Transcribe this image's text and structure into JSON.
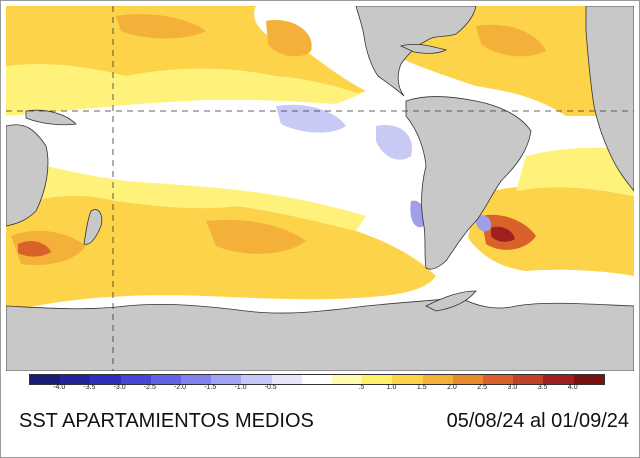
{
  "map": {
    "colors": {
      "ocean_neutral": "#ffffff",
      "land": "#c8c8c8",
      "coast": "#333333",
      "warm_light": "#fff27a",
      "warm_mid": "#fdd34a",
      "warm_strong": "#f4b13a",
      "warm_hot": "#d9622a",
      "warm_extreme": "#a01f1f",
      "cool_light": "#c9c9f5",
      "cool_mid": "#9f9fea",
      "graticule": "#333333"
    }
  },
  "legend": {
    "ticks": [
      "-4.0",
      "-3.5",
      "-3.0",
      "-2.5",
      "-2.0",
      "-1.5",
      "-1.0",
      "-0.5",
      ".5",
      "1.0",
      "1.5",
      "2.0",
      "2.5",
      "3.0",
      "3.5",
      "4.0"
    ],
    "colors": [
      "#1b1b78",
      "#23239a",
      "#2f2fbd",
      "#4646d6",
      "#6262e6",
      "#8080f0",
      "#a3a3f5",
      "#c6c6f8",
      "#e6e6fb",
      "#ffffff",
      "#fffab0",
      "#fff06a",
      "#fdd34a",
      "#f4b13a",
      "#ea8a2c",
      "#d9622a",
      "#c0402a",
      "#a01f1f",
      "#7a1212"
    ]
  },
  "caption": {
    "title": "SST APARTAMIENTOS MEDIOS",
    "period": "05/08/24 al 01/09/24"
  }
}
